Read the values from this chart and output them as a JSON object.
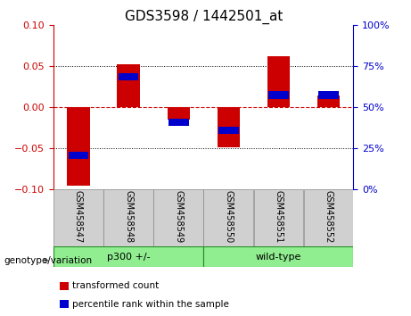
{
  "title": "GDS3598 / 1442501_at",
  "samples": [
    "GSM458547",
    "GSM458548",
    "GSM458549",
    "GSM458550",
    "GSM458551",
    "GSM458552"
  ],
  "red_bars": [
    -0.095,
    0.053,
    -0.015,
    -0.048,
    0.062,
    0.015
  ],
  "blue_markers": [
    -0.058,
    0.037,
    -0.018,
    -0.028,
    0.015,
    0.015
  ],
  "group_labels": [
    "p300 +/-",
    "wild-type"
  ],
  "group_ranges": [
    [
      0,
      3
    ],
    [
      3,
      6
    ]
  ],
  "group_label_text": "genotype/variation",
  "legend_items": [
    {
      "label": "transformed count",
      "color": "#cc0000"
    },
    {
      "label": "percentile rank within the sample",
      "color": "#0000cc"
    }
  ],
  "ylim_left": [
    -0.1,
    0.1
  ],
  "ylim_right": [
    0,
    100
  ],
  "yticks_left": [
    -0.1,
    -0.05,
    0,
    0.05,
    0.1
  ],
  "yticks_right": [
    0,
    25,
    50,
    75,
    100
  ],
  "left_axis_color": "#cc0000",
  "right_axis_color": "#0000cc",
  "bar_color": "#cc0000",
  "marker_color": "#0000cc",
  "zero_line_color": "#cc0000",
  "sample_box_color": "#d0d0d0",
  "group_box_color": "#90EE90",
  "group_border_color": "#228B22",
  "title_fontsize": 11,
  "tick_fontsize": 8,
  "sample_fontsize": 7,
  "group_fontsize": 8,
  "legend_fontsize": 7.5,
  "geno_fontsize": 7.5
}
